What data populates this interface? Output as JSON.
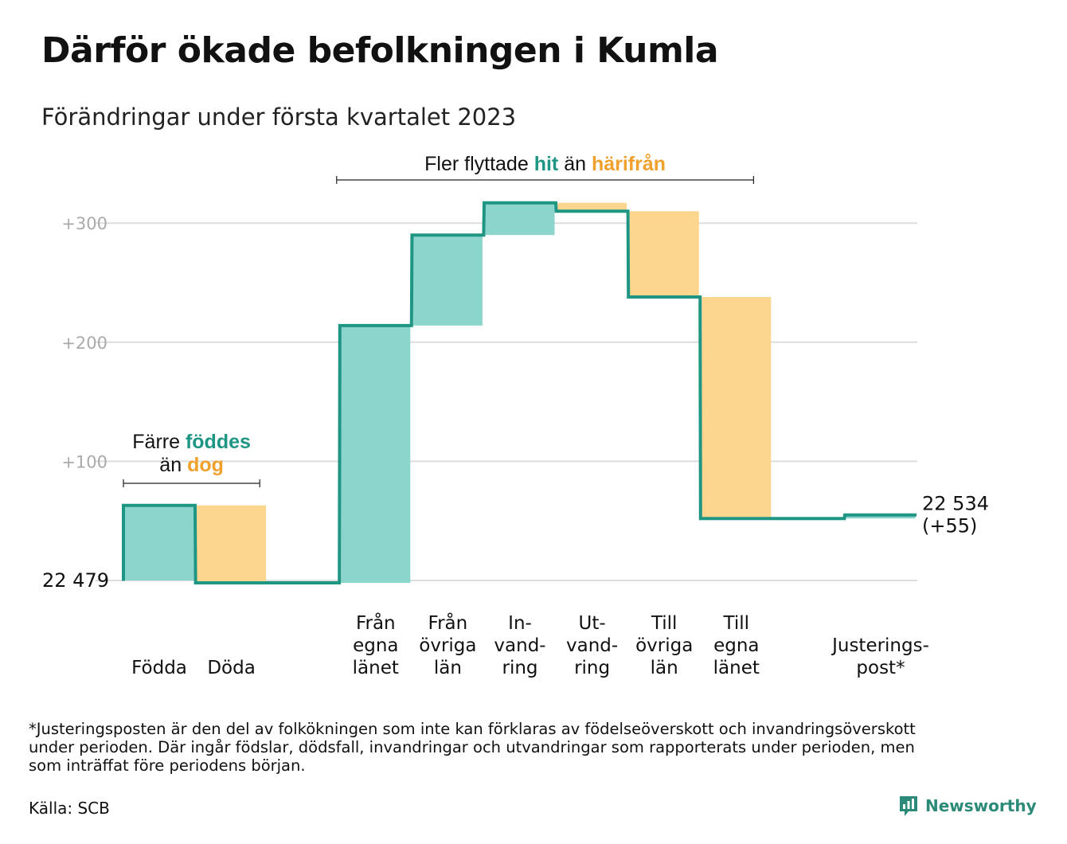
{
  "title": "Därför ökade befolkningen i Kumla",
  "subtitle": "Förändringar under första kvartalet 2023",
  "colors": {
    "increase": "#8cd5cc",
    "decrease": "#fcd68e",
    "line": "#1f9584",
    "teal_text": "#1f9584",
    "orange_text": "#f0a02c",
    "grid": "#dddddd",
    "tick": "#aaaaaa"
  },
  "chart_data": {
    "type": "waterfall",
    "title": "Därför ökade befolkningen i Kumla",
    "subtitle": "Förändringar under första kvartalet 2023",
    "start_value": 22479,
    "start_label": "22 479",
    "end_value": 22534,
    "end_label": "22 534",
    "end_change_label": "(+55)",
    "y_ticks": [
      {
        "value": 100,
        "label": "+100"
      },
      {
        "value": 200,
        "label": "+200"
      },
      {
        "value": 300,
        "label": "+300"
      }
    ],
    "ylim": [
      0,
      360
    ],
    "grid": true,
    "bars": [
      {
        "label": "Födda",
        "change": 63,
        "kind": "increase"
      },
      {
        "label": "Döda",
        "change": -65,
        "kind": "decrease"
      },
      {
        "label": "",
        "change": 0,
        "kind": "none"
      },
      {
        "label": "Från egna länet",
        "change": 216,
        "kind": "increase"
      },
      {
        "label": "Från övriga län",
        "change": 76,
        "kind": "increase"
      },
      {
        "label": "In-vandring",
        "change": 27,
        "kind": "increase"
      },
      {
        "label": "Ut-vandring",
        "change": -7,
        "kind": "decrease"
      },
      {
        "label": "Till övriga län",
        "change": -72,
        "kind": "decrease"
      },
      {
        "label": "Till egna länet",
        "change": -186,
        "kind": "decrease"
      },
      {
        "label": "",
        "change": 0,
        "kind": "none"
      },
      {
        "label": "Justerings-post*",
        "change": 3,
        "kind": "increase"
      }
    ],
    "annotations": [
      {
        "id": "births",
        "line1_parts": [
          "Färre ",
          "föddes"
        ],
        "line2_parts": [
          "än ",
          "dog"
        ]
      },
      {
        "id": "moves",
        "parts": [
          "Fler flyttade ",
          "hit",
          " än ",
          "härifrån"
        ]
      }
    ]
  },
  "axis_labels": [
    {
      "lines": [
        "Födda"
      ]
    },
    {
      "lines": [
        "Döda"
      ]
    },
    {
      "lines": [
        "Från",
        "egna",
        "länet"
      ]
    },
    {
      "lines": [
        "Från",
        "övriga",
        "län"
      ]
    },
    {
      "lines": [
        "In-",
        "vand-",
        "ring"
      ]
    },
    {
      "lines": [
        "Ut-",
        "vand-",
        "ring"
      ]
    },
    {
      "lines": [
        "Till",
        "övriga",
        "län"
      ]
    },
    {
      "lines": [
        "Till",
        "egna",
        "länet"
      ]
    },
    {
      "lines": [
        "Justerings-",
        "post*"
      ]
    }
  ],
  "footnote_lines": [
    "*Justeringsposten är den del av folkökningen som inte kan förklaras av födelseöverskott och invandringsöverskott",
    "under perioden. Där ingår födslar, dödsfall, invandringar och utvandringar som rapporterats under perioden, men",
    "som inträffat före periodens början."
  ],
  "source": "Källa: SCB",
  "brand": {
    "name": "Newsworthy",
    "icon": "newsworthy-logo-icon"
  }
}
